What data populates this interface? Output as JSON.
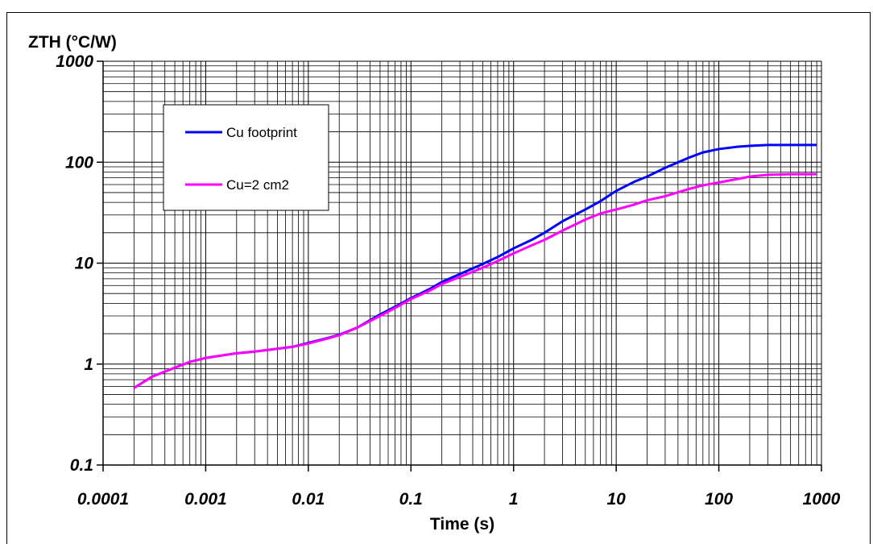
{
  "caption": "",
  "chart_data": {
    "type": "line",
    "title": "",
    "ylabel": "ZTH (°C/W)",
    "xlabel": "Time (s)",
    "x_scale": "log",
    "y_scale": "log",
    "xlim": [
      0.0001,
      1000
    ],
    "ylim": [
      0.1,
      1000
    ],
    "grid": true,
    "legend_position": "top-left",
    "x_tick_labels": [
      "0.0001",
      "0.001",
      "0.01",
      "0.1",
      "1",
      "10",
      "100",
      "1000"
    ],
    "y_tick_labels": [
      "0.1",
      "1",
      "10",
      "100",
      "1000"
    ],
    "series": [
      {
        "name": "Cu footprint",
        "color": "#0000ff",
        "points": [
          [
            0.0002,
            0.58
          ],
          [
            0.0003,
            0.75
          ],
          [
            0.0005,
            0.92
          ],
          [
            0.0007,
            1.05
          ],
          [
            0.001,
            1.15
          ],
          [
            0.002,
            1.28
          ],
          [
            0.003,
            1.33
          ],
          [
            0.005,
            1.42
          ],
          [
            0.007,
            1.48
          ],
          [
            0.01,
            1.62
          ],
          [
            0.015,
            1.8
          ],
          [
            0.02,
            1.95
          ],
          [
            0.03,
            2.3
          ],
          [
            0.05,
            3.1
          ],
          [
            0.07,
            3.7
          ],
          [
            0.1,
            4.5
          ],
          [
            0.15,
            5.5
          ],
          [
            0.2,
            6.5
          ],
          [
            0.3,
            7.8
          ],
          [
            0.5,
            9.8
          ],
          [
            0.7,
            11.5
          ],
          [
            1,
            14
          ],
          [
            1.5,
            17
          ],
          [
            2,
            20
          ],
          [
            3,
            26
          ],
          [
            5,
            34
          ],
          [
            7,
            41
          ],
          [
            10,
            52
          ],
          [
            15,
            64
          ],
          [
            20,
            72
          ],
          [
            30,
            88
          ],
          [
            50,
            110
          ],
          [
            70,
            125
          ],
          [
            100,
            135
          ],
          [
            150,
            142
          ],
          [
            200,
            145
          ],
          [
            300,
            148
          ],
          [
            500,
            148
          ],
          [
            900,
            148
          ]
        ]
      },
      {
        "name": "Cu=2 cm2",
        "color": "#ff00ff",
        "points": [
          [
            0.0002,
            0.58
          ],
          [
            0.0003,
            0.75
          ],
          [
            0.0005,
            0.92
          ],
          [
            0.0007,
            1.05
          ],
          [
            0.001,
            1.15
          ],
          [
            0.002,
            1.28
          ],
          [
            0.003,
            1.33
          ],
          [
            0.005,
            1.42
          ],
          [
            0.007,
            1.48
          ],
          [
            0.01,
            1.6
          ],
          [
            0.015,
            1.78
          ],
          [
            0.02,
            1.93
          ],
          [
            0.03,
            2.3
          ],
          [
            0.05,
            3.0
          ],
          [
            0.07,
            3.6
          ],
          [
            0.1,
            4.4
          ],
          [
            0.15,
            5.3
          ],
          [
            0.2,
            6.2
          ],
          [
            0.3,
            7.3
          ],
          [
            0.5,
            9.0
          ],
          [
            0.7,
            10.5
          ],
          [
            1,
            12.5
          ],
          [
            1.5,
            15
          ],
          [
            2,
            17
          ],
          [
            3,
            21
          ],
          [
            5,
            27
          ],
          [
            7,
            31
          ],
          [
            10,
            34
          ],
          [
            15,
            38
          ],
          [
            20,
            42
          ],
          [
            30,
            46
          ],
          [
            50,
            54
          ],
          [
            70,
            59
          ],
          [
            100,
            63
          ],
          [
            150,
            68
          ],
          [
            200,
            72
          ],
          [
            300,
            75
          ],
          [
            500,
            76
          ],
          [
            900,
            76
          ]
        ]
      }
    ]
  }
}
